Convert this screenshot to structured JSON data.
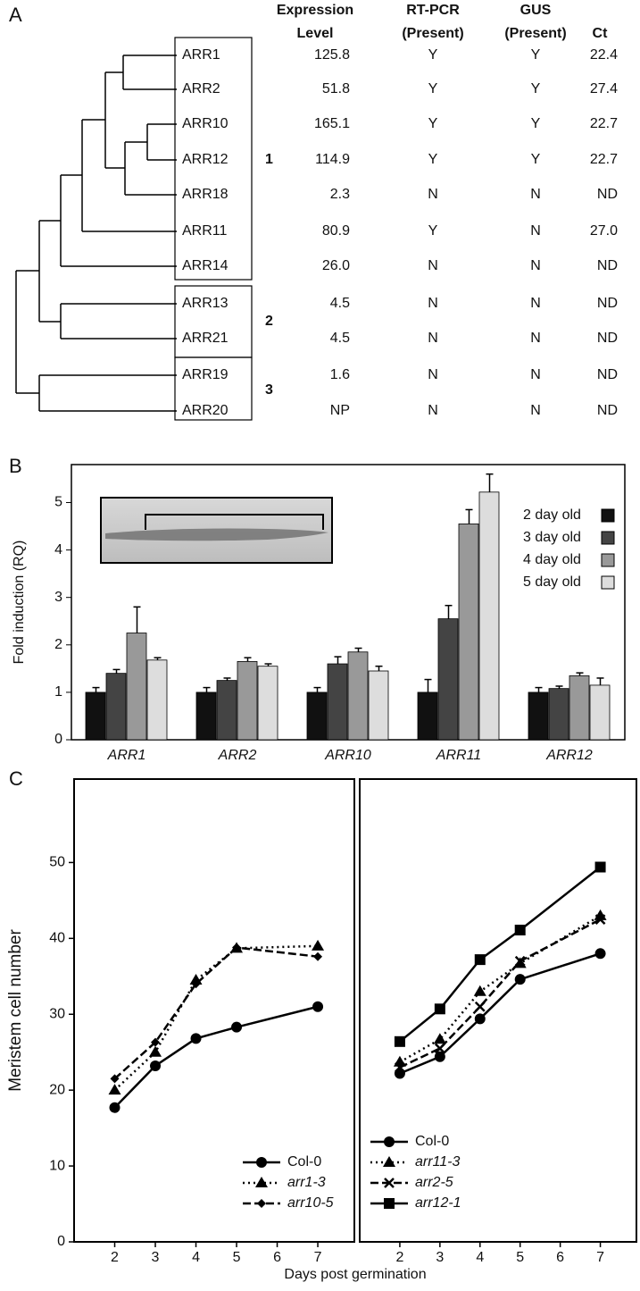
{
  "panel_a": {
    "label": "A",
    "columns": [
      [
        "Expression",
        "Level"
      ],
      [
        "RT-PCR",
        "(Present)"
      ],
      [
        "GUS",
        "(Present)"
      ],
      [
        "Ct"
      ]
    ],
    "rows": [
      [
        "ARR1",
        "125.8",
        "Y",
        "Y",
        "22.4"
      ],
      [
        "ARR2",
        "51.8",
        "Y",
        "Y",
        "27.4"
      ],
      [
        "ARR10",
        "165.1",
        "Y",
        "Y",
        "22.7"
      ],
      [
        "ARR12",
        "114.9",
        "Y",
        "Y",
        "22.7"
      ],
      [
        "ARR18",
        "2.3",
        "N",
        "N",
        "ND"
      ],
      [
        "ARR11",
        "80.9",
        "Y",
        "N",
        "27.0"
      ],
      [
        "ARR14",
        "26.0",
        "N",
        "N",
        "ND"
      ],
      [
        "ARR13",
        "4.5",
        "N",
        "N",
        "ND"
      ],
      [
        "ARR21",
        "4.5",
        "N",
        "N",
        "ND"
      ],
      [
        "ARR19",
        "1.6",
        "N",
        "N",
        "ND"
      ],
      [
        "ARR20",
        "NP",
        "N",
        "N",
        "ND"
      ]
    ],
    "groups": [
      "1",
      "2",
      "3"
    ]
  },
  "chart_data": [
    {
      "type": "bar",
      "panel_label": "B",
      "ylabel": "Fold induction (RQ)",
      "categories": [
        "ARR1",
        "ARR2",
        "ARR10",
        "ARR11",
        "ARR12"
      ],
      "category_style": "italic",
      "series": [
        {
          "name": "2 day old",
          "color": "#111111",
          "values": [
            1.0,
            1.0,
            1.0,
            1.0,
            1.0
          ],
          "errors": [
            0.1,
            0.1,
            0.1,
            0.27,
            0.1
          ]
        },
        {
          "name": "3 day old",
          "color": "#444444",
          "values": [
            1.4,
            1.25,
            1.6,
            2.55,
            1.08
          ],
          "errors": [
            0.08,
            0.05,
            0.15,
            0.28,
            0.05
          ]
        },
        {
          "name": "4 day old",
          "color": "#999999",
          "values": [
            2.25,
            1.65,
            1.85,
            4.55,
            1.35
          ],
          "errors": [
            0.55,
            0.08,
            0.08,
            0.3,
            0.06
          ]
        },
        {
          "name": "5 day old",
          "color": "#dddddd",
          "values": [
            1.68,
            1.55,
            1.45,
            5.22,
            1.15
          ],
          "errors": [
            0.05,
            0.05,
            0.1,
            0.38,
            0.15
          ]
        }
      ],
      "ylim": [
        0,
        5.8
      ],
      "yticks": [
        0,
        1,
        2,
        3,
        4,
        5
      ],
      "legend": "upper right"
    },
    {
      "type": "line",
      "panel_label": "C",
      "ylabel": "Meristem cell number",
      "xlabel": "Days post germination",
      "xlim": [
        1,
        7.9
      ],
      "xticks": [
        2,
        3,
        4,
        5,
        6,
        7
      ],
      "ylim": [
        0,
        61
      ],
      "yticks": [
        0,
        10,
        20,
        30,
        40,
        50
      ],
      "legend": "lower right",
      "series": [
        {
          "name": "Col-0",
          "color": "#000000",
          "dash": "solid",
          "marker": "circle",
          "italic": false,
          "x": [
            2,
            3,
            4,
            5,
            7
          ],
          "values": [
            17.7,
            23.2,
            26.8,
            28.3,
            31.0
          ]
        },
        {
          "name": "arr1-3",
          "color": "#000000",
          "dash": "dotted",
          "marker": "triangle",
          "italic": true,
          "x": [
            2,
            3,
            4,
            5,
            7
          ],
          "values": [
            20.0,
            25.0,
            34.5,
            38.7,
            39.0
          ]
        },
        {
          "name": "arr10-5",
          "color": "#000000",
          "dash": "dashed",
          "marker": "diamond",
          "italic": true,
          "x": [
            2,
            3,
            4,
            5,
            7
          ],
          "values": [
            21.5,
            26.3,
            34.0,
            38.8,
            37.6
          ]
        }
      ]
    },
    {
      "type": "line",
      "xlim": [
        1,
        7.9
      ],
      "xticks": [
        2,
        3,
        4,
        5,
        6,
        7
      ],
      "ylim": [
        0,
        61
      ],
      "legend": "lower left",
      "series": [
        {
          "name": "Col-0",
          "color": "#000000",
          "dash": "solid",
          "marker": "circle",
          "italic": false,
          "x": [
            2,
            3,
            4,
            5,
            7
          ],
          "values": [
            22.2,
            24.4,
            29.4,
            34.6,
            38.0
          ]
        },
        {
          "name": "arr11-3",
          "color": "#000000",
          "dash": "dotted",
          "marker": "triangle",
          "italic": true,
          "x": [
            2,
            3,
            4,
            5,
            7
          ],
          "values": [
            23.7,
            26.7,
            33.0,
            36.7,
            43.0
          ]
        },
        {
          "name": "arr2-5",
          "color": "#000000",
          "dash": "dashed",
          "marker": "x",
          "italic": true,
          "x": [
            2,
            3,
            4,
            5,
            7
          ],
          "values": [
            23.0,
            25.5,
            31.0,
            37.0,
            42.5
          ]
        },
        {
          "name": "arr12-1",
          "color": "#000000",
          "dash": "solid",
          "marker": "square",
          "italic": true,
          "x": [
            2,
            3,
            4,
            5,
            7
          ],
          "values": [
            26.4,
            30.7,
            37.2,
            41.1,
            49.4
          ]
        }
      ]
    }
  ]
}
